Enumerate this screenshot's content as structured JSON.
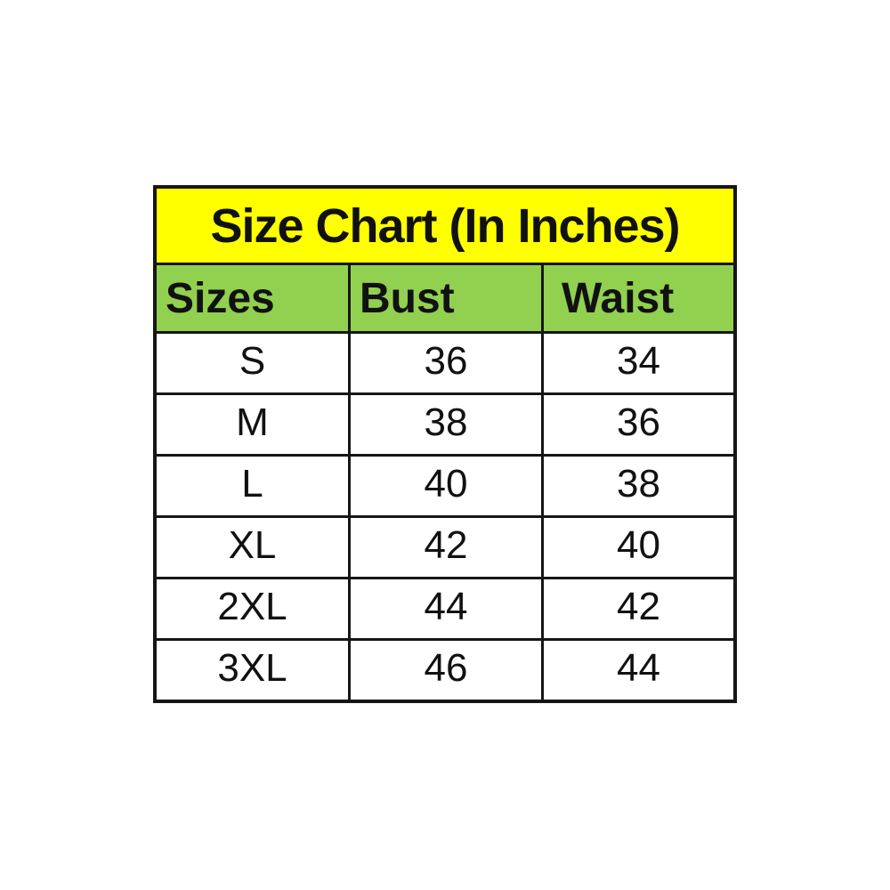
{
  "chart_data": {
    "type": "table",
    "title": "Size Chart (In Inches)",
    "columns": [
      "Sizes",
      "Bust",
      "Waist"
    ],
    "rows": [
      [
        "S",
        36,
        34
      ],
      [
        "M",
        38,
        36
      ],
      [
        "L",
        40,
        38
      ],
      [
        "XL",
        42,
        40
      ],
      [
        "2XL",
        44,
        42
      ],
      [
        "3XL",
        46,
        44
      ]
    ],
    "units": "inches",
    "colors": {
      "title_background": "#ffff00",
      "header_background": "#92d050",
      "row_background": "#ffffff",
      "border": "#161616",
      "text": "#111111",
      "page_background": "#ffffff"
    },
    "layout": {
      "title_centered": true,
      "header_left_aligned": true,
      "data_centered": true
    }
  },
  "table": {
    "title": "Size Chart (In Inches)",
    "columns": [
      "Sizes",
      "Bust",
      "Waist"
    ],
    "rows": [
      {
        "size": "S",
        "bust": "36",
        "waist": "34"
      },
      {
        "size": "M",
        "bust": "38",
        "waist": "36"
      },
      {
        "size": "L",
        "bust": "40",
        "waist": "38"
      },
      {
        "size": "XL",
        "bust": "42",
        "waist": "40"
      },
      {
        "size": "2XL",
        "bust": "44",
        "waist": "42"
      },
      {
        "size": "3XL",
        "bust": "46",
        "waist": "44"
      }
    ]
  }
}
